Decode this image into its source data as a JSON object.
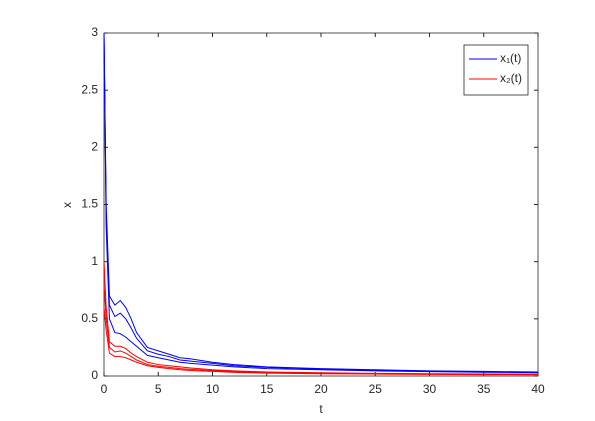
{
  "chart_data": {
    "type": "line",
    "x_label": "t",
    "y_label": "x",
    "x": [
      0,
      0.2,
      0.5,
      1,
      1.5,
      2,
      2.5,
      3,
      4,
      5,
      6,
      7,
      8,
      10,
      12,
      15,
      20,
      25,
      30,
      35,
      40
    ],
    "series": [
      {
        "name": "x₁(t)",
        "color": "#0000ff",
        "values": [
          3,
          1.5,
          0.7,
          0.62,
          0.66,
          0.6,
          0.5,
          0.38,
          0.25,
          0.22,
          0.19,
          0.16,
          0.15,
          0.12,
          0.1,
          0.08,
          0.065,
          0.055,
          0.045,
          0.04,
          0.035
        ]
      },
      {
        "color": "#0000ff",
        "values": [
          3,
          1.4,
          0.62,
          0.52,
          0.55,
          0.5,
          0.42,
          0.33,
          0.22,
          0.19,
          0.17,
          0.14,
          0.13,
          0.11,
          0.09,
          0.075,
          0.06,
          0.05,
          0.042,
          0.037,
          0.032
        ]
      },
      {
        "color": "#0000ff",
        "values": [
          3,
          1.3,
          0.5,
          0.38,
          0.37,
          0.34,
          0.3,
          0.26,
          0.18,
          0.16,
          0.14,
          0.12,
          0.11,
          0.095,
          0.08,
          0.065,
          0.055,
          0.045,
          0.038,
          0.033,
          0.03
        ]
      },
      {
        "name": "x₂(t)",
        "color": "#ff0000",
        "values": [
          1,
          0.6,
          0.3,
          0.26,
          0.26,
          0.24,
          0.2,
          0.17,
          0.12,
          0.1,
          0.09,
          0.08,
          0.07,
          0.055,
          0.045,
          0.035,
          0.028,
          0.023,
          0.02,
          0.018,
          0.016
        ]
      },
      {
        "color": "#ff0000",
        "values": [
          0.8,
          0.5,
          0.25,
          0.21,
          0.22,
          0.2,
          0.17,
          0.14,
          0.1,
          0.085,
          0.075,
          0.065,
          0.058,
          0.047,
          0.038,
          0.03,
          0.024,
          0.02,
          0.017,
          0.015,
          0.013
        ]
      },
      {
        "color": "#ff0000",
        "values": [
          0.6,
          0.4,
          0.2,
          0.17,
          0.17,
          0.16,
          0.14,
          0.12,
          0.09,
          0.075,
          0.065,
          0.055,
          0.048,
          0.04,
          0.032,
          0.025,
          0.02,
          0.017,
          0.014,
          0.012,
          0.011
        ]
      }
    ],
    "xlim": [
      0,
      40
    ],
    "xticks": [
      0,
      5,
      10,
      15,
      20,
      25,
      30,
      35,
      40
    ],
    "ylim": [
      0,
      3
    ],
    "yticks": [
      0,
      0.5,
      1,
      1.5,
      2,
      2.5,
      3
    ],
    "legend": "northeast"
  }
}
